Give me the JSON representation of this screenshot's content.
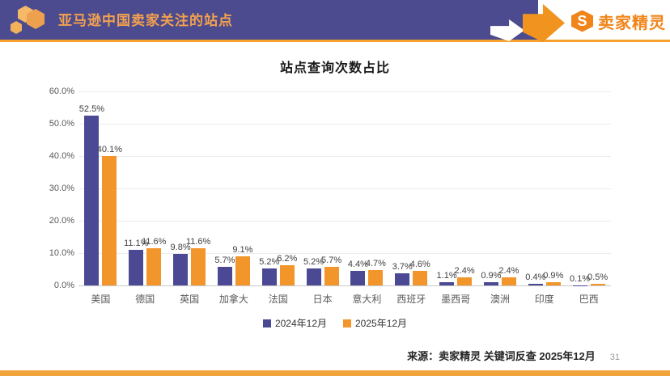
{
  "header": {
    "title": "亚马逊中国卖家关注的站点",
    "brand": "卖家精灵",
    "logo_monogram": "S"
  },
  "colors": {
    "header_background": "#4D4B8F",
    "header_accent_orange": "#F5A12B",
    "brand_orange": "#F08519",
    "bar_purple": "#4B4994",
    "bar_orange": "#F2952B",
    "bottom_strip": "#F2A43C"
  },
  "chart_data": {
    "type": "bar",
    "title": "站点查询次数占比",
    "categories": [
      "美国",
      "德国",
      "英国",
      "加拿大",
      "法国",
      "日本",
      "意大利",
      "西班牙",
      "墨西哥",
      "澳洲",
      "印度",
      "巴西"
    ],
    "series": [
      {
        "name": "2024年12月",
        "color": "#4B4994",
        "values": [
          52.5,
          11.1,
          9.8,
          5.7,
          5.2,
          5.2,
          4.4,
          3.7,
          1.1,
          0.9,
          0.4,
          0.1
        ]
      },
      {
        "name": "2025年12月",
        "color": "#F2952B",
        "values": [
          40.1,
          11.6,
          11.6,
          9.1,
          6.2,
          5.7,
          4.7,
          4.6,
          2.4,
          2.4,
          0.9,
          0.5
        ]
      }
    ],
    "xlabel": "",
    "ylabel": "",
    "ylim": [
      0,
      60
    ],
    "ytick_step": 10,
    "ytick_format": "0.0%",
    "value_labels": true,
    "grid": true,
    "legend_position": "bottom"
  },
  "footer": {
    "source": "来源：卖家精灵 关键词反查 2025年12月",
    "page": "31"
  }
}
